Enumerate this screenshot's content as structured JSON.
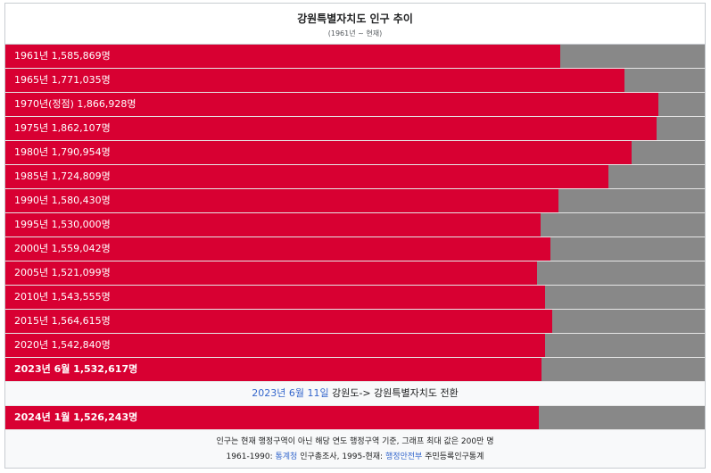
{
  "chart_data": {
    "type": "bar",
    "orientation": "horizontal",
    "title": "강원특별자치도 인구 추이",
    "subtitle": "(1961년 ~ 현재)",
    "xlim": [
      0,
      2000000
    ],
    "colors": {
      "bar": "#d80032",
      "track": "#888888"
    },
    "bars": [
      {
        "label": "1961년 1,585,869명",
        "value": 1585869,
        "bold": false
      },
      {
        "label": "1965년 1,771,035명",
        "value": 1771035,
        "bold": false
      },
      {
        "label": "1970년(정점) 1,866,928명",
        "value": 1866928,
        "bold": false
      },
      {
        "label": "1975년 1,862,107명",
        "value": 1862107,
        "bold": false
      },
      {
        "label": "1980년 1,790,954명",
        "value": 1790954,
        "bold": false
      },
      {
        "label": "1985년 1,724,809명",
        "value": 1724809,
        "bold": false
      },
      {
        "label": "1990년 1,580,430명",
        "value": 1580430,
        "bold": false
      },
      {
        "label": "1995년 1,530,000명",
        "value": 1530000,
        "bold": false
      },
      {
        "label": "2000년 1,559,042명",
        "value": 1559042,
        "bold": false
      },
      {
        "label": "2005년 1,521,099명",
        "value": 1521099,
        "bold": false
      },
      {
        "label": "2010년 1,543,555명",
        "value": 1543555,
        "bold": false
      },
      {
        "label": "2015년 1,564,615명",
        "value": 1564615,
        "bold": false
      },
      {
        "label": "2020년 1,542,840명",
        "value": 1542840,
        "bold": false
      },
      {
        "label": "2023년 6월 1,532,617명",
        "value": 1532617,
        "bold": true
      }
    ],
    "transition_note": {
      "date_link": "2023년 6월 11일",
      "text": " 강원도-> 강원특별자치도 전환"
    },
    "after_bars": [
      {
        "label": "2024년 1월 1,526,243명",
        "value": 1526243,
        "bold": true
      }
    ],
    "footer": {
      "line1": "인구는 현재 행정구역이 아닌 해당 연도 행정구역 기준, 그래프 최대 값은 200만 명",
      "line2_prefix": "1961-1990: ",
      "line2_link1": "통계청",
      "line2_mid": " 인구총조사, 1995-현재: ",
      "line2_link2": "행정안전부",
      "line2_suffix": " 주민등록인구통계"
    }
  }
}
